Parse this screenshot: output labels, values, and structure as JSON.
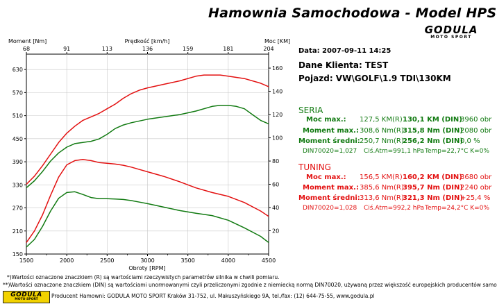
{
  "header": {
    "title": "Hamownia Samochodowa   -   Model HPS-O",
    "logo_main": "GODULA",
    "logo_sub": "MOTO SPORT"
  },
  "info": {
    "date": "Data: 2007-09-11  14:25",
    "client": "Dane Klienta: TEST",
    "vehicle": "Pojazd: VW\\GOLF\\1.9 TDI\\130KM"
  },
  "seria": {
    "heading": "SERIA",
    "rows": [
      {
        "label": "Moc max.:",
        "r": "127,5 KM(R)",
        "din": "130,1 KM (DIN)",
        "extra": "3960 obr"
      },
      {
        "label": "Moment max.:",
        "r": "308,6 Nm(R)",
        "din": "315,8 Nm (DIN)",
        "extra": "2080 obr"
      },
      {
        "label": "Moment średni:",
        "r": "250,7 Nm(R)",
        "din": "256,2 Nm (DIN)",
        "extra": "0,0 %"
      }
    ],
    "din": "DIN70020=1,027",
    "atm": "Ciś.Atm=991,1 hPa",
    "temp": "Temp=22,7°C  K=0%"
  },
  "tuning": {
    "heading": "TUNING",
    "rows": [
      {
        "label": "Moc max.:",
        "r": "156,5 KM(R)",
        "din": "160,2 KM (DIN)",
        "extra": "3680 obr"
      },
      {
        "label": "Moment max.:",
        "r": "385,6 Nm(R)",
        "din": "395,7 Nm (DIN)",
        "extra": "2240 obr"
      },
      {
        "label": "Moment średni:",
        "r": "313,6 Nm(R)",
        "din": "321,3 Nm (DIN)",
        "extra": "+25,4 %"
      }
    ],
    "din": "DIN70020=1,028",
    "atm": "Ciś.Atm=992,2 hPa",
    "temp": "Temp=24,2°C  K=0%"
  },
  "footer": {
    "note1": "*)Wartości oznaczone znaczkiem (R) są wartościami rzeczywistych parametrów silnika w chwili pomiaru.",
    "note2": "**)Wartości oznaczone znaczkiem (DIN) są wartościami unormowanymi czyli przeliczonymi zgodnie z niemiecką normą DIN70020, używaną przez większość europejskich producentów samochodów.",
    "producer": "Producent Hamowni: GODULA MOTO SPORT Kraków 31-752, ul. Makuszyńskiego 9A, tel./fax: (12) 644-75-55, www.godula.pl",
    "logo_main": "GODULA",
    "logo_sub": "MOTO SPORT"
  },
  "colors": {
    "seria": "#117a11",
    "tuning": "#e31010"
  },
  "chart_data": {
    "type": "line",
    "xlabel": "Obroty [RPM]",
    "ylabel_left": "Moment [Nm]",
    "ylabel_right": "Moc [KM]",
    "x2label": "Prędkość [km/h]",
    "x_ticks": [
      1500,
      2000,
      2500,
      3000,
      3500,
      4000,
      4500
    ],
    "x2_ticks": [
      "68",
      "91",
      "113",
      "136",
      "159",
      "181",
      "204"
    ],
    "y_left_ticks": [
      150,
      210,
      270,
      330,
      390,
      450,
      510,
      570,
      630
    ],
    "y_right_ticks": [
      20,
      40,
      60,
      80,
      100,
      120,
      140,
      160
    ],
    "xlim": [
      1500,
      4500
    ],
    "ylim_left": [
      150,
      670
    ],
    "ylim_right": [
      0,
      172
    ],
    "grid": true,
    "series": [
      {
        "name": "TUNING",
        "axis": "right",
        "color": "#e31010",
        "x": [
          1500,
          1600,
          1700,
          1800,
          1900,
          2000,
          2100,
          2200,
          2300,
          2400,
          2500,
          2600,
          2700,
          2800,
          2900,
          3000,
          3200,
          3400,
          3600,
          3700,
          3800,
          3900,
          4000,
          4200,
          4400,
          4500
        ],
        "y": [
          60,
          67,
          76,
          86,
          96,
          104,
          110,
          115,
          118,
          121,
          125,
          129,
          134,
          138,
          141,
          143,
          146,
          149,
          153,
          154,
          154,
          154,
          153,
          151,
          147,
          144
        ]
      },
      {
        "name": "TUNING",
        "axis": "left",
        "color": "#e31010",
        "x": [
          1500,
          1600,
          1700,
          1800,
          1900,
          2000,
          2100,
          2200,
          2300,
          2400,
          2500,
          2600,
          2700,
          2800,
          2900,
          3000,
          3200,
          3400,
          3600,
          3800,
          4000,
          4200,
          4400,
          4500
        ],
        "y": [
          180,
          210,
          252,
          303,
          350,
          382,
          393,
          396,
          393,
          388,
          386,
          384,
          381,
          376,
          370,
          364,
          352,
          338,
          322,
          310,
          300,
          284,
          262,
          248
        ]
      },
      {
        "name": "SERIA",
        "axis": "right",
        "color": "#117a11",
        "x": [
          1500,
          1600,
          1700,
          1800,
          1900,
          2000,
          2100,
          2200,
          2300,
          2400,
          2500,
          2600,
          2700,
          2800,
          3000,
          3200,
          3400,
          3600,
          3800,
          3900,
          4000,
          4100,
          4200,
          4300,
          4400,
          4500
        ],
        "y": [
          57,
          63,
          71,
          80,
          87,
          92,
          95,
          96,
          97,
          99,
          103,
          108,
          111,
          113,
          116,
          118,
          120,
          123,
          127,
          128,
          128,
          127,
          125,
          120,
          115,
          112
        ]
      },
      {
        "name": "SERIA",
        "axis": "left",
        "color": "#117a11",
        "x": [
          1500,
          1600,
          1700,
          1800,
          1900,
          2000,
          2100,
          2200,
          2300,
          2400,
          2500,
          2600,
          2700,
          2800,
          2900,
          3000,
          3200,
          3400,
          3600,
          3800,
          4000,
          4200,
          4400,
          4500
        ],
        "y": [
          168,
          188,
          222,
          262,
          295,
          310,
          312,
          305,
          297,
          294,
          294,
          293,
          292,
          289,
          285,
          281,
          272,
          263,
          256,
          250,
          238,
          218,
          196,
          180
        ]
      }
    ]
  }
}
